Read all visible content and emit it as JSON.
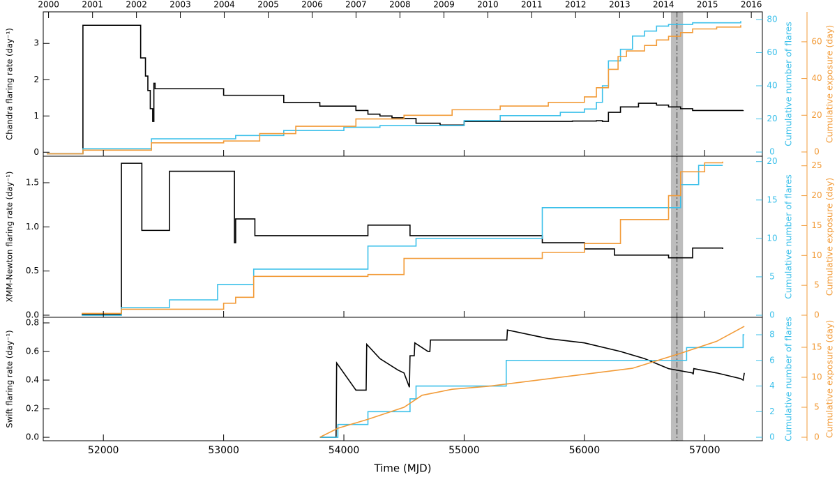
{
  "chart_data": [
    {
      "type": "line",
      "ylabel": "Chandra flaring rate (day⁻¹)",
      "y2label": "Cumulative number of flares",
      "y3label": "Cumulative exposure (day)",
      "xlim": [
        51500,
        57480
      ],
      "xticks": [
        52000,
        53000,
        54000,
        55000,
        56000,
        57000
      ],
      "x2ticks": [
        {
          "value": 51544,
          "label": "2000"
        },
        {
          "value": 51910,
          "label": "2001"
        },
        {
          "value": 52275,
          "label": "2002"
        },
        {
          "value": 52640,
          "label": "2003"
        },
        {
          "value": 53005,
          "label": "2004"
        },
        {
          "value": 53371,
          "label": "2005"
        },
        {
          "value": 53736,
          "label": "2006"
        },
        {
          "value": 54101,
          "label": "2007"
        },
        {
          "value": 54466,
          "label": "2008"
        },
        {
          "value": 54832,
          "label": "2009"
        },
        {
          "value": 55197,
          "label": "2010"
        },
        {
          "value": 55562,
          "label": "2011"
        },
        {
          "value": 55927,
          "label": "2012"
        },
        {
          "value": 56293,
          "label": "2013"
        },
        {
          "value": 56658,
          "label": "2014"
        },
        {
          "value": 57023,
          "label": "2015"
        },
        {
          "value": 57388,
          "label": "2016"
        }
      ],
      "ylim": [
        -0.11,
        3.87
      ],
      "yticks": [
        0,
        1,
        2,
        3
      ],
      "y2lim": [
        -2.5,
        84.6
      ],
      "y2ticks": [
        0,
        20,
        40,
        60,
        80
      ],
      "y2color": "#3cc0ea",
      "y3lim": [
        -2.3,
        76.3
      ],
      "y3ticks": [
        0,
        20,
        40,
        60
      ],
      "y3color": "#f29b38",
      "span": [
        56720,
        56820
      ],
      "vline": 56770,
      "series": [
        {
          "axis": "y",
          "color": "#000000",
          "drawstyle": "steps",
          "x": [
            51530,
            51830,
            52310,
            52350,
            52370,
            52390,
            52410,
            52420,
            52430,
            52440,
            53000,
            53500,
            53800,
            54100,
            54200,
            54300,
            54400,
            54500,
            54600,
            54800,
            55000,
            55300,
            55900,
            56100,
            56150,
            56200,
            56300,
            56450,
            56600,
            56700,
            56800,
            56900,
            57000,
            57320
          ],
          "values": [
            -0.04,
            3.5,
            2.6,
            2.1,
            1.7,
            1.2,
            0.85,
            1.9,
            1.75,
            1.75,
            1.57,
            1.37,
            1.27,
            1.15,
            1.05,
            1.0,
            0.95,
            0.93,
            0.8,
            0.75,
            0.85,
            0.85,
            0.86,
            0.87,
            0.85,
            1.1,
            1.25,
            1.35,
            1.3,
            1.25,
            1.2,
            1.15,
            1.15,
            1.16
          ]
        },
        {
          "axis": "y2",
          "color": "#3cc0ea",
          "drawstyle": "steps",
          "x": [
            51530,
            51830,
            52400,
            53100,
            53500,
            54000,
            54300,
            55000,
            55300,
            55800,
            56000,
            56100,
            56150,
            56200,
            56300,
            56400,
            56500,
            56600,
            56700,
            56900,
            57300
          ],
          "values": [
            -1,
            2,
            8,
            10,
            13,
            15,
            16,
            19,
            22,
            24,
            26,
            30,
            40,
            55,
            62,
            70,
            73,
            76,
            77,
            78,
            79
          ]
        },
        {
          "axis": "y3",
          "color": "#f29b38",
          "drawstyle": "steps",
          "x": [
            51530,
            51830,
            52400,
            53000,
            53300,
            53600,
            54100,
            54500,
            54900,
            55300,
            55700,
            56000,
            56100,
            56200,
            56280,
            56350,
            56500,
            56600,
            56700,
            56800,
            56900,
            57100,
            57300
          ],
          "values": [
            -1,
            1,
            5,
            6,
            10,
            14,
            18,
            20,
            23,
            25,
            27,
            30,
            35,
            45,
            52,
            55,
            58,
            61,
            63,
            65,
            67,
            68,
            69
          ]
        }
      ]
    },
    {
      "type": "line",
      "ylabel": "XMM-Newton flaring rate (day⁻¹)",
      "y2label": "Cumulative number of flares",
      "y3label": "Cumulative exposure (day)",
      "xlim": [
        51500,
        57480
      ],
      "xticks": [
        52000,
        53000,
        54000,
        55000,
        56000,
        57000
      ],
      "ylim": [
        -0.024,
        1.8
      ],
      "yticks": [
        {
          "value": 0,
          "label": "0.0"
        },
        {
          "value": 0.5,
          "label": "0.5"
        },
        {
          "value": 1,
          "label": "1.0"
        },
        {
          "value": 1.5,
          "label": "1.5"
        }
      ],
      "y2lim": [
        -0.27,
        20.7
      ],
      "y2ticks": [
        0,
        5,
        10,
        15,
        20
      ],
      "y2color": "#3cc0ea",
      "y3lim": [
        -0.35,
        26.6
      ],
      "y3ticks": [
        0,
        5,
        10,
        15,
        20,
        25
      ],
      "y3color": "#f29b38",
      "span": [
        56720,
        56820
      ],
      "vline": 56770,
      "series": [
        {
          "axis": "y",
          "color": "#000000",
          "drawstyle": "steps",
          "x": [
            51820,
            52150,
            52320,
            52550,
            53090,
            53100,
            53260,
            54200,
            54550,
            55650,
            56000,
            56250,
            56700,
            56900,
            57150
          ],
          "values": [
            0.01,
            1.72,
            0.96,
            1.63,
            0.82,
            1.09,
            0.9,
            1.02,
            0.9,
            0.82,
            0.75,
            0.68,
            0.65,
            0.76,
            0.75
          ]
        },
        {
          "axis": "y2",
          "color": "#3cc0ea",
          "drawstyle": "steps",
          "x": [
            51820,
            52150,
            52550,
            52950,
            53250,
            54200,
            54600,
            55650,
            56800,
            56950,
            57150
          ],
          "values": [
            0,
            1,
            2,
            4,
            6,
            9,
            10,
            14,
            17,
            19.5,
            19.5
          ]
        },
        {
          "axis": "y3",
          "color": "#f29b38",
          "drawstyle": "steps",
          "x": [
            51820,
            52150,
            53000,
            53100,
            53250,
            54200,
            54500,
            55650,
            56000,
            56300,
            56700,
            56800,
            57000,
            57150
          ],
          "values": [
            0.3,
            1,
            2,
            3,
            6.5,
            6.8,
            9.5,
            10.5,
            12,
            16,
            20,
            24,
            25.5,
            25.7
          ]
        }
      ]
    },
    {
      "type": "line",
      "ylabel": "Swift flaring rate (day⁻¹)",
      "y2label": "Cumulative number of flares",
      "y3label": "Cumulative exposure (day)",
      "xlabel": "Time (MJD)",
      "xlim": [
        51500,
        57480
      ],
      "xticks": [
        52000,
        53000,
        54000,
        55000,
        56000,
        57000
      ],
      "ylim": [
        -0.024,
        0.839
      ],
      "yticks": [
        {
          "value": 0,
          "label": "0.0"
        },
        {
          "value": 0.2,
          "label": "0.2"
        },
        {
          "value": 0.4,
          "label": "0.4"
        },
        {
          "value": 0.6,
          "label": "0.6"
        },
        {
          "value": 0.8,
          "label": "0.8"
        }
      ],
      "y2lim": [
        -0.27,
        9.36
      ],
      "y2ticks": [
        0,
        2,
        4,
        6,
        8
      ],
      "y2color": "#3cc0ea",
      "y3lim": [
        -0.58,
        20
      ],
      "y3ticks": [
        0,
        5,
        10,
        15
      ],
      "y3color": "#f29b38",
      "span": [
        56720,
        56820
      ],
      "vline": 56770,
      "series": [
        {
          "axis": "y",
          "color": "#000000",
          "drawstyle": "linear",
          "x": [
            53800,
            53935,
            53940,
            54100,
            54185,
            54190,
            54300,
            54450,
            54500,
            54545,
            54550,
            54585,
            54590,
            54700,
            54715,
            54720,
            55350,
            55355,
            55360,
            55700,
            56000,
            56300,
            56500,
            56700,
            56900,
            56905,
            56910,
            57100,
            57300,
            57320,
            57330
          ],
          "values": [
            0,
            0,
            0.52,
            0.33,
            0.33,
            0.65,
            0.55,
            0.47,
            0.45,
            0.35,
            0.57,
            0.57,
            0.66,
            0.6,
            0.6,
            0.68,
            0.68,
            0.68,
            0.75,
            0.69,
            0.66,
            0.6,
            0.55,
            0.48,
            0.45,
            0.44,
            0.48,
            0.45,
            0.41,
            0.4,
            0.45
          ]
        },
        {
          "axis": "y2",
          "color": "#3cc0ea",
          "drawstyle": "steps",
          "x": [
            53800,
            53950,
            54200,
            54550,
            54600,
            55350,
            56850,
            57320,
            57330
          ],
          "values": [
            0,
            1,
            2,
            3,
            4,
            6,
            7,
            8,
            8
          ]
        },
        {
          "axis": "y3",
          "color": "#f29b38",
          "drawstyle": "linear",
          "x": [
            53800,
            53950,
            54200,
            54500,
            54650,
            54900,
            55200,
            55600,
            56000,
            56400,
            56800,
            57100,
            57330
          ],
          "values": [
            0,
            1.5,
            3,
            5,
            7,
            8,
            8.5,
            9.5,
            10.5,
            11.5,
            14,
            16,
            18.5
          ]
        }
      ]
    }
  ]
}
